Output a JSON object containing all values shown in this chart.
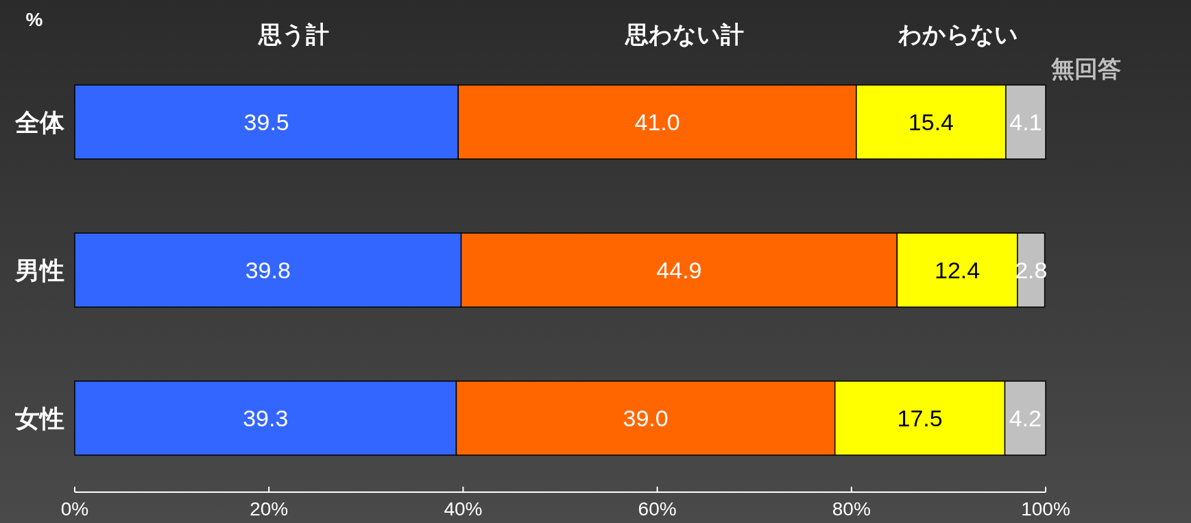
{
  "chart_data": {
    "type": "bar",
    "orientation": "horizontal",
    "stacked": true,
    "categories": [
      "全体",
      "男性",
      "女性"
    ],
    "series": [
      {
        "name": "思う計",
        "color": "#3366ff",
        "values": [
          39.5,
          39.8,
          39.3
        ],
        "value_labels": [
          "39.5",
          "39.8",
          "39.3"
        ]
      },
      {
        "name": "思わない計",
        "color": "#ff6600",
        "values": [
          41.0,
          44.9,
          39.0
        ],
        "value_labels": [
          "41.0",
          "44.9",
          "39.0"
        ]
      },
      {
        "name": "わからない",
        "color": "#ffff00",
        "values": [
          15.4,
          12.4,
          17.5
        ],
        "value_labels": [
          "15.4",
          "12.4",
          "17.5"
        ]
      },
      {
        "name": "無回答",
        "color": "#c0c0c0",
        "values": [
          4.1,
          2.8,
          4.2
        ],
        "value_labels": [
          "4.1",
          "2.8",
          "4.2"
        ]
      }
    ],
    "xlim": [
      0,
      100
    ],
    "xticks": [
      {
        "value": 0,
        "label": "0%"
      },
      {
        "value": 20,
        "label": "20%"
      },
      {
        "value": 40,
        "label": "40%"
      },
      {
        "value": 60,
        "label": "60%"
      },
      {
        "value": 80,
        "label": "80%"
      },
      {
        "value": 100,
        "label": "100%"
      }
    ],
    "annotations": [
      "%"
    ]
  }
}
